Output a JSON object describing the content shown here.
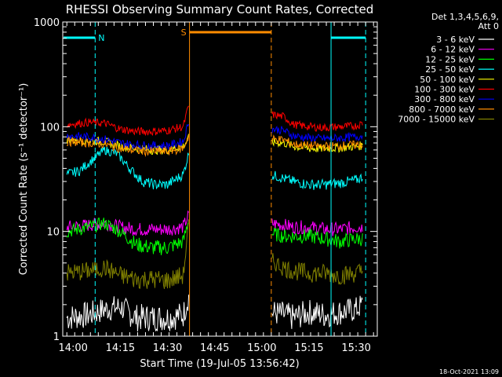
{
  "chart_data": {
    "type": "line",
    "title": "RHESSI Observing Summary Count Rates, Corrected",
    "xlabel": "Start Time (19-Jul-05 13:56:42)",
    "ylabel": "Corrected Count Rate (s⁻¹ detector⁻¹)",
    "y_scale": "log",
    "ylim": [
      1,
      1000
    ],
    "xlim_minutes": [
      0,
      100
    ],
    "x_tick_labels": [
      "14:00",
      "14:15",
      "14:30",
      "14:45",
      "15:00",
      "15:15",
      "15:30"
    ],
    "y_tick_labels": [
      "1",
      "10",
      "100",
      "1000"
    ],
    "legend_header": [
      "Det 1,3,4,5,6,9,",
      "Att 0"
    ],
    "legend_placement": "right",
    "footer_date": "18-Oct-2021 13:09",
    "markers": {
      "N": "N",
      "S": "S"
    },
    "data_gaps": [
      {
        "name": "S",
        "label": "S",
        "start": "14:37",
        "end": "15:03",
        "color": "#ff8c00"
      }
    ],
    "series": [
      {
        "name": "3 - 6 keV",
        "color": "#ffffff",
        "x": [
          "13:58",
          "14:05",
          "14:10",
          "14:15",
          "14:20",
          "14:25",
          "14:30",
          "14:35",
          "14:37",
          "15:07",
          "15:10",
          "15:15",
          "15:20",
          "15:25",
          "15:30",
          "15:32"
        ],
        "values": [
          1.5,
          1.6,
          1.8,
          1.9,
          1.5,
          1.5,
          1.5,
          1.6,
          2.5,
          1.6,
          1.5,
          1.7,
          1.6,
          1.7,
          1.8,
          2.0
        ]
      },
      {
        "name": "6 - 12 keV",
        "color": "#ff00ff",
        "x": [
          "13:58",
          "14:05",
          "14:10",
          "14:15",
          "14:20",
          "14:25",
          "14:30",
          "14:35",
          "14:37",
          "15:07",
          "15:10",
          "15:15",
          "15:20",
          "15:25",
          "15:30",
          "15:32"
        ],
        "values": [
          11,
          11.5,
          12,
          11,
          10.5,
          10.5,
          10.5,
          11,
          15,
          11.5,
          11,
          11,
          10.5,
          10.5,
          11,
          11
        ]
      },
      {
        "name": "12 - 25 keV",
        "color": "#00ff00",
        "x": [
          "13:58",
          "14:05",
          "14:10",
          "14:15",
          "14:20",
          "14:25",
          "14:30",
          "14:35",
          "14:37",
          "15:07",
          "15:10",
          "15:15",
          "15:20",
          "15:25",
          "15:30",
          "15:32"
        ],
        "values": [
          10,
          11,
          12,
          10,
          7.5,
          7,
          7,
          8,
          14,
          9,
          9,
          9,
          8.5,
          8,
          8.5,
          8.5
        ]
      },
      {
        "name": "25 - 50 keV",
        "color": "#00ffff",
        "x": [
          "13:58",
          "14:02",
          "14:06",
          "14:10",
          "14:14",
          "14:18",
          "14:22",
          "14:26",
          "14:30",
          "14:35",
          "14:37",
          "15:07",
          "15:10",
          "15:15",
          "15:20",
          "15:25",
          "15:30",
          "15:32"
        ],
        "values": [
          35,
          38,
          48,
          60,
          55,
          40,
          30,
          28,
          28,
          35,
          60,
          32,
          30,
          28,
          28,
          29,
          31,
          33
        ]
      },
      {
        "name": "50 - 100 keV",
        "color": "#ffff00",
        "x": [
          "13:58",
          "14:05",
          "14:10",
          "14:15",
          "14:20",
          "14:25",
          "14:30",
          "14:35",
          "14:37",
          "15:07",
          "15:10",
          "15:15",
          "15:20",
          "15:25",
          "15:30",
          "15:32"
        ],
        "values": [
          75,
          74,
          72,
          65,
          62,
          60,
          60,
          65,
          80,
          70,
          65,
          62,
          62,
          63,
          65,
          66
        ]
      },
      {
        "name": "100 - 300 keV",
        "color": "#ff0000",
        "x": [
          "13:58",
          "14:05",
          "14:10",
          "14:15",
          "14:20",
          "14:25",
          "14:30",
          "14:35",
          "14:37",
          "15:07",
          "15:10",
          "15:15",
          "15:20",
          "15:25",
          "15:30",
          "15:32"
        ],
        "values": [
          105,
          110,
          108,
          95,
          90,
          90,
          92,
          100,
          170,
          125,
          105,
          100,
          98,
          100,
          102,
          108
        ]
      },
      {
        "name": "300 - 800 keV",
        "color": "#0000ff",
        "x": [
          "13:58",
          "14:05",
          "14:10",
          "14:15",
          "14:20",
          "14:25",
          "14:30",
          "14:35",
          "14:37",
          "15:07",
          "15:10",
          "15:15",
          "15:20",
          "15:25",
          "15:30",
          "15:32"
        ],
        "values": [
          82,
          80,
          76,
          70,
          67,
          66,
          66,
          72,
          120,
          92,
          82,
          78,
          77,
          78,
          80,
          82
        ]
      },
      {
        "name": "800 - 7000 keV",
        "color": "#ff8c00",
        "x": [
          "13:58",
          "14:05",
          "14:10",
          "14:15",
          "14:20",
          "14:25",
          "14:30",
          "14:35",
          "14:37",
          "15:07",
          "15:10",
          "15:15",
          "15:20",
          "15:25",
          "15:30",
          "15:32"
        ],
        "values": [
          72,
          70,
          68,
          62,
          59,
          58,
          58,
          62,
          85,
          75,
          68,
          66,
          65,
          66,
          67,
          68
        ]
      },
      {
        "name": "7000 - 15000 keV",
        "color": "#808000",
        "x": [
          "13:58",
          "14:05",
          "14:10",
          "14:15",
          "14:20",
          "14:25",
          "14:30",
          "14:35",
          "14:37",
          "15:07",
          "15:10",
          "15:15",
          "15:20",
          "15:25",
          "15:30",
          "15:32"
        ],
        "values": [
          4,
          4.2,
          4.5,
          3.8,
          3.5,
          3.5,
          3.4,
          3.8,
          14,
          4.5,
          4.2,
          4.0,
          4.0,
          3.8,
          4.0,
          4.2
        ]
      }
    ]
  }
}
